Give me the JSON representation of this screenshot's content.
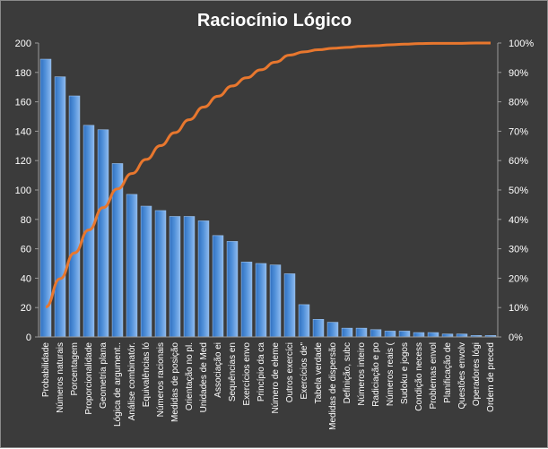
{
  "chart_data": {
    "type": "bar",
    "title": "Raciocínio  Lógico",
    "xlabel": "",
    "ylabel": "",
    "ylim": [
      0,
      200
    ],
    "yticks": [
      0,
      20,
      40,
      60,
      80,
      100,
      120,
      140,
      160,
      180,
      200
    ],
    "y2lim": [
      0,
      100
    ],
    "y2ticks": [
      "0%",
      "10%",
      "20%",
      "30%",
      "40%",
      "50%",
      "60%",
      "70%",
      "80%",
      "90%",
      "100%"
    ],
    "grid": false,
    "legend": "none",
    "colors": {
      "background": "#3b3b3b",
      "bar": "#4f8fd9",
      "bar_edge": "#9cc3ef",
      "line": "#e8772e",
      "text": "#ffffff"
    },
    "categories": [
      "Probabilidade",
      "Números naturais",
      "Porcentagem",
      "Proporcionalidade",
      "Geometria plana",
      "Lógica de argument..",
      "Análise combinatór.",
      "Equivalências ló",
      "Números racionais",
      "Medidas de posição",
      "Orientação no pl.",
      "Unidades de Med",
      "Associação ei",
      "Sequências en",
      "Exercícios envo",
      "Princípio da ca",
      "Número de eleme",
      "Outros exercíci",
      "Exercícios de\"",
      "Tabela verdade",
      "Medidas de dispersão",
      "Definição, subc",
      "Números inteiro",
      "Radiciação e po",
      "Números reais (",
      "Sudoku e jogos",
      "Condição necess",
      "Problemas envol",
      "Planificação de",
      "Questões envolv",
      "Operadores lógi",
      "Ordem de preced"
    ],
    "series": [
      {
        "type": "bar",
        "values": [
          189,
          177,
          164,
          144,
          141,
          118,
          97,
          89,
          86,
          82,
          82,
          79,
          69,
          65,
          51,
          50,
          49,
          43,
          22,
          12,
          10,
          6,
          6,
          5,
          4,
          4,
          3,
          3,
          2,
          2,
          1,
          1
        ]
      },
      {
        "type": "line",
        "axis": "secondary",
        "values": [
          10.2,
          19.8,
          28.6,
          36.4,
          44.0,
          50.4,
          55.6,
          60.4,
          65.1,
          69.5,
          73.9,
          78.2,
          81.9,
          85.4,
          88.2,
          90.9,
          93.5,
          95.9,
          97.0,
          97.7,
          98.2,
          98.5,
          98.9,
          99.1,
          99.4,
          99.6,
          99.8,
          99.9,
          99.9,
          99.9,
          100,
          100
        ]
      }
    ]
  }
}
